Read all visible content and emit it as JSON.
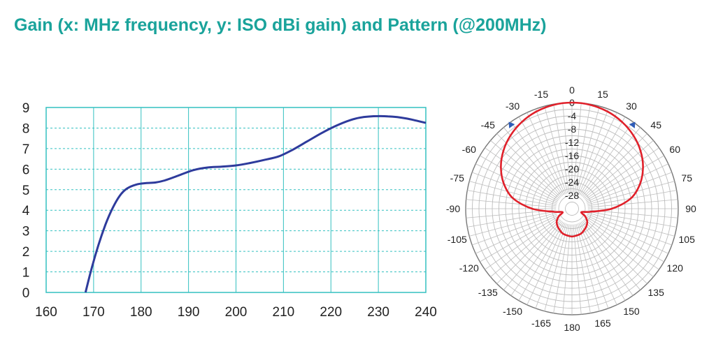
{
  "title": "Gain (x: MHz frequency, y: ISO dBi gain) and Pattern (@200MHz)",
  "colors": {
    "title": "#1aa39b",
    "gain_line": "#2e3b9c",
    "pattern_line": "#e0202a",
    "grid": "#33c0c0"
  },
  "chart_data": [
    {
      "type": "line",
      "title": "",
      "xlabel": "",
      "ylabel": "",
      "xlim": [
        160,
        240
      ],
      "ylim": [
        0,
        9
      ],
      "xticks": [
        "160",
        "170",
        "180",
        "190",
        "200",
        "210",
        "220",
        "230",
        "240"
      ],
      "yticks": [
        "0",
        "1",
        "2",
        "3",
        "4",
        "5",
        "6",
        "7",
        "8",
        "9"
      ],
      "grid": true,
      "series": [
        {
          "x": [
            168.3,
            169.5,
            171,
            172.5,
            174,
            175.5,
            177,
            179,
            181,
            183,
            185,
            188,
            191,
            194,
            197,
            200,
            203,
            206,
            209,
            212,
            215,
            218,
            221,
            224,
            226,
            228,
            230,
            232,
            234,
            236,
            238,
            240
          ],
          "y": [
            0,
            1.1,
            2.3,
            3.3,
            4.1,
            4.7,
            5.05,
            5.25,
            5.32,
            5.35,
            5.45,
            5.7,
            5.95,
            6.08,
            6.12,
            6.18,
            6.3,
            6.45,
            6.62,
            6.95,
            7.35,
            7.75,
            8.1,
            8.38,
            8.5,
            8.56,
            8.58,
            8.57,
            8.53,
            8.46,
            8.36,
            8.25
          ]
        }
      ]
    },
    {
      "type": "polar",
      "title": "",
      "angle_ticks": [
        "0",
        "15",
        "30",
        "45",
        "60",
        "75",
        "90",
        "105",
        "120",
        "135",
        "150",
        "165",
        "180",
        "-165",
        "-150",
        "-135",
        "-120",
        "-105",
        "-90",
        "-75",
        "-60",
        "-45",
        "-30",
        "-15"
      ],
      "radial_ticks": [
        "0",
        "-4",
        "-8",
        "-12",
        "-16",
        "-20",
        "-24",
        "-28"
      ],
      "radial_range": [
        -32,
        0
      ],
      "markers_deg": [
        -36,
        36
      ],
      "series": [
        {
          "angle_deg": [
            0,
            10,
            20,
            30,
            40,
            50,
            60,
            70,
            80,
            90,
            100,
            110,
            120,
            130,
            140,
            150,
            160,
            170,
            180,
            190,
            200,
            210,
            220,
            230,
            240,
            250,
            260,
            270,
            280,
            290,
            300,
            310,
            320,
            330,
            340,
            350,
            360
          ],
          "gain_db": [
            0,
            -0.2,
            -0.8,
            -1.8,
            -3.2,
            -5.0,
            -7.3,
            -10.2,
            -14.0,
            -20.0,
            -26.5,
            -29.0,
            -27.4,
            -26.0,
            -25.2,
            -24.6,
            -24.0,
            -23.8,
            -23.6,
            -23.8,
            -24.0,
            -24.6,
            -25.2,
            -26.0,
            -27.4,
            -29.0,
            -26.5,
            -20.0,
            -14.0,
            -10.2,
            -7.3,
            -5.0,
            -3.2,
            -1.8,
            -0.8,
            -0.2,
            0
          ]
        }
      ]
    }
  ]
}
